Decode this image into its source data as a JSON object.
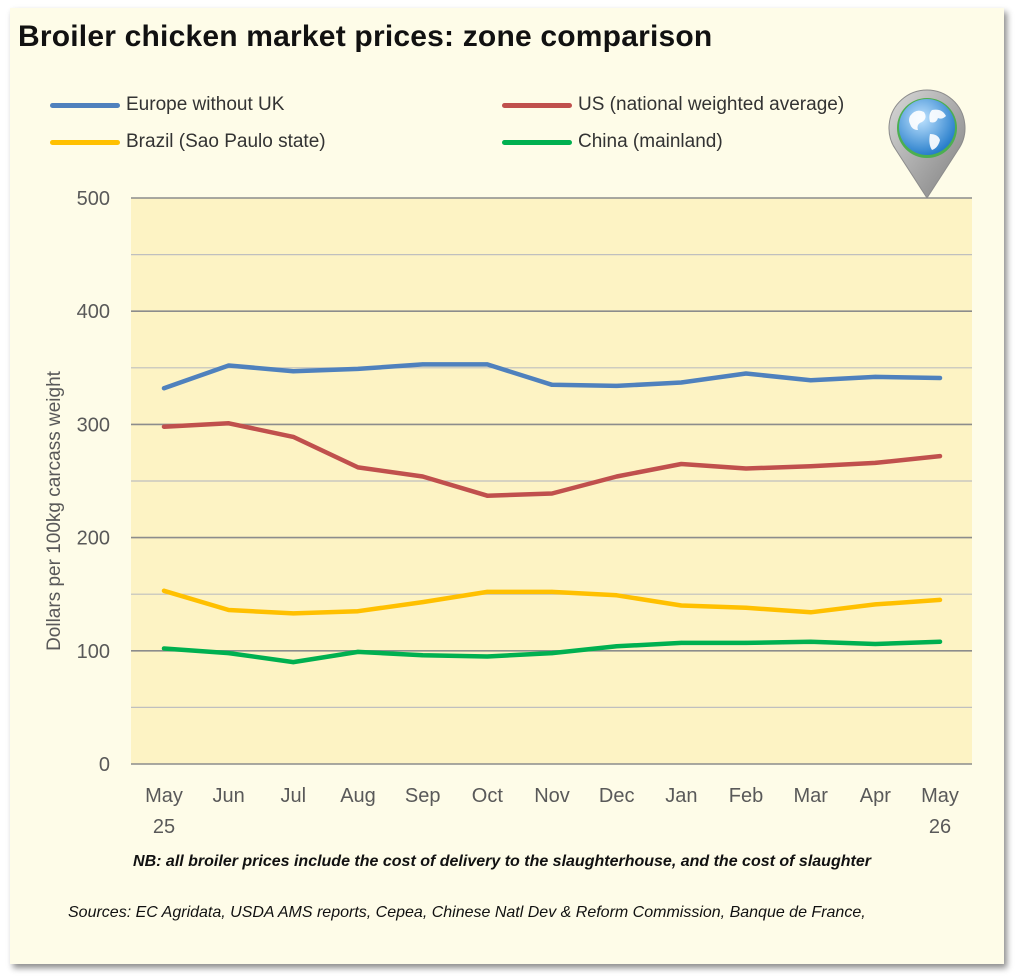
{
  "chart_data": {
    "type": "line",
    "title": "Broiler chicken market prices: zone comparison",
    "ylabel": "Dollars per 100kg carcass weight",
    "xlabel": "",
    "ylim": [
      0,
      500
    ],
    "yticks": [
      0,
      100,
      200,
      300,
      400,
      500
    ],
    "grid": "horizontal, every 50",
    "legend_position": "top",
    "categories": [
      [
        "May",
        "25"
      ],
      [
        "Jun"
      ],
      [
        "Jul"
      ],
      [
        "Aug"
      ],
      [
        "Sep"
      ],
      [
        "Oct"
      ],
      [
        "Nov"
      ],
      [
        "Dec"
      ],
      [
        "Jan"
      ],
      [
        "Feb"
      ],
      [
        "Mar"
      ],
      [
        "Apr"
      ],
      [
        "May",
        "26"
      ]
    ],
    "series": [
      {
        "name": "Europe without UK",
        "color": "#4f81bd",
        "values": [
          332,
          352,
          347,
          349,
          353,
          353,
          335,
          334,
          337,
          345,
          339,
          342,
          341
        ]
      },
      {
        "name": "US (national weighted average)",
        "color": "#c0504d",
        "values": [
          298,
          301,
          289,
          262,
          254,
          237,
          239,
          254,
          265,
          261,
          263,
          266,
          272
        ]
      },
      {
        "name": "Brazil (Sao Paulo state)",
        "color": "#ffc000",
        "values": [
          153,
          136,
          133,
          135,
          143,
          152,
          152,
          149,
          140,
          138,
          134,
          141,
          145
        ]
      },
      {
        "name": "China (mainland)",
        "color": "#00b050",
        "values": [
          102,
          98,
          90,
          99,
          96,
          95,
          98,
          104,
          107,
          107,
          108,
          106,
          108
        ]
      }
    ],
    "note": "NB: all broiler prices include the cost of delivery to the slaughterhouse, and the cost of slaughter",
    "sources": "Sources: EC Agridata, USDA AMS reports, Cepea, Chinese Natl Dev & Reform Commission, Banque de France,"
  },
  "colors": {
    "card_background": "#fefce8",
    "plot_background": "#fdf3c4",
    "gridline": "#a6a6a6",
    "axis_text": "#595959"
  },
  "icons": {
    "map_pin": "globe-pin-icon"
  }
}
